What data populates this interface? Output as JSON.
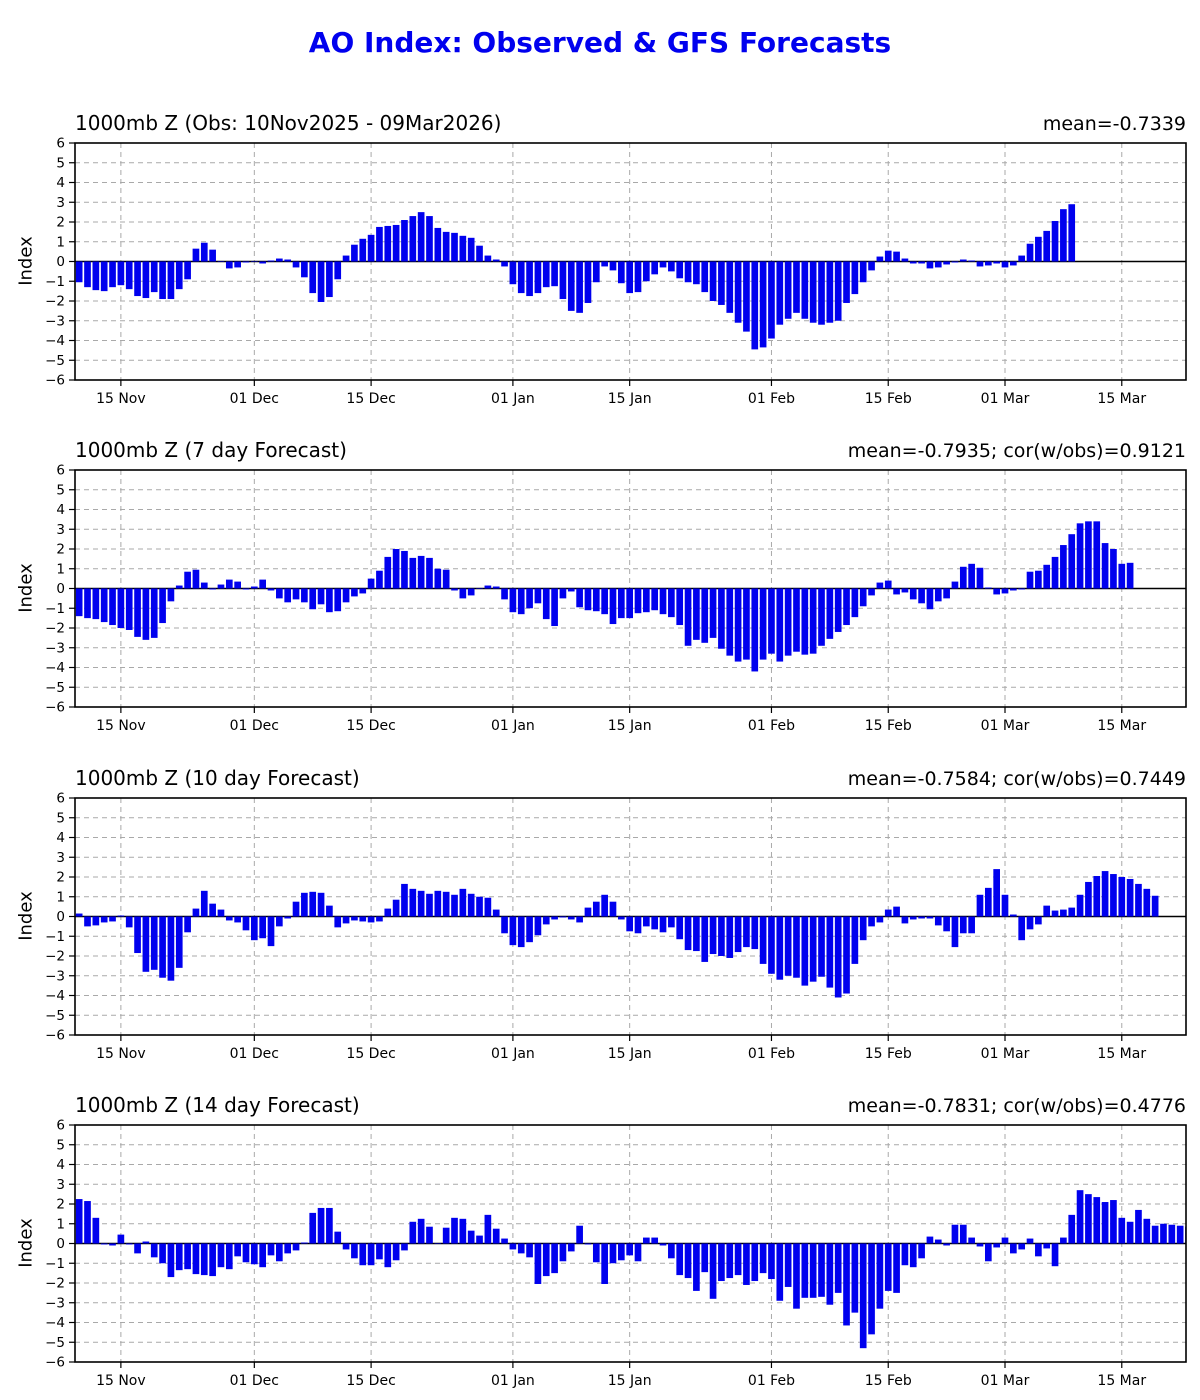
{
  "figure": {
    "title": "AO Index: Observed & GFS Forecasts",
    "title_color": "#0000ee",
    "bar_color": "#0000ee",
    "background": "#ffffff"
  },
  "x_axis": {
    "tick_labels": [
      "15 Nov",
      "01 Dec",
      "15 Dec",
      "01 Jan",
      "15 Jan",
      "01 Feb",
      "15 Feb",
      "01 Mar",
      "15 Mar"
    ],
    "tick_day_indices": [
      5,
      21,
      35,
      52,
      66,
      83,
      97,
      111,
      125
    ],
    "start_date_label": "10Nov2025",
    "days_shown": 133.2
  },
  "y_axis": {
    "label": "Index",
    "ticks": [
      6,
      5,
      4,
      3,
      2,
      1,
      0,
      -1,
      -2,
      -3,
      -4,
      -5,
      -6
    ],
    "min": -6,
    "max": 6,
    "grid": true
  },
  "chart_data": [
    {
      "id": "observed",
      "type": "bar",
      "title": "1000mb Z (Obs: 10Nov2025 - 09Mar2026)",
      "annotation": "mean=-0.7339",
      "ylabel": "Index",
      "ylim": [
        -6,
        6
      ],
      "x_start": "10Nov2025",
      "x_step_days": 1,
      "values": [
        -1.05,
        -1.3,
        -1.45,
        -1.5,
        -1.3,
        -1.2,
        -1.4,
        -1.75,
        -1.85,
        -1.55,
        -1.9,
        -1.9,
        -1.4,
        -0.9,
        0.65,
        0.95,
        0.6,
        0.0,
        -0.35,
        -0.3,
        -0.05,
        0.0,
        -0.1,
        0.05,
        0.15,
        0.1,
        -0.3,
        -0.8,
        -1.6,
        -2.05,
        -1.8,
        -0.9,
        0.3,
        0.85,
        1.15,
        1.35,
        1.75,
        1.8,
        1.85,
        2.1,
        2.3,
        2.5,
        2.3,
        1.7,
        1.5,
        1.45,
        1.3,
        1.2,
        0.8,
        0.3,
        0.1,
        -0.25,
        -1.15,
        -1.6,
        -1.75,
        -1.6,
        -1.3,
        -1.25,
        -1.9,
        -2.5,
        -2.6,
        -2.1,
        -1.05,
        -0.25,
        -0.45,
        -1.1,
        -1.6,
        -1.55,
        -1.0,
        -0.65,
        -0.3,
        -0.5,
        -0.85,
        -1.05,
        -1.15,
        -1.55,
        -2.0,
        -2.2,
        -2.6,
        -3.1,
        -3.55,
        -4.45,
        -4.35,
        -3.9,
        -3.2,
        -2.9,
        -2.6,
        -2.9,
        -3.1,
        -3.2,
        -3.1,
        -3.0,
        -2.1,
        -1.65,
        -1.05,
        -0.45,
        0.25,
        0.55,
        0.5,
        0.15,
        -0.1,
        -0.1,
        -0.35,
        -0.3,
        -0.15,
        -0.05,
        0.1,
        0.05,
        -0.25,
        -0.2,
        -0.1,
        -0.3,
        -0.2,
        0.3,
        0.9,
        1.25,
        1.55,
        2.05,
        2.65,
        2.9
      ]
    },
    {
      "id": "forecast-7day",
      "type": "bar",
      "title": "1000mb Z (7 day Forecast)",
      "annotation": "mean=-0.7935; cor(w/obs)=0.9121",
      "ylabel": "Index",
      "ylim": [
        -6,
        6
      ],
      "x_start": "10Nov2025",
      "x_step_days": 1,
      "values": [
        -1.4,
        -1.5,
        -1.55,
        -1.7,
        -1.85,
        -2.0,
        -2.1,
        -2.45,
        -2.6,
        -2.5,
        -1.75,
        -0.65,
        0.15,
        0.85,
        0.95,
        0.3,
        -0.05,
        0.2,
        0.45,
        0.35,
        -0.05,
        0.1,
        0.45,
        -0.1,
        -0.5,
        -0.7,
        -0.55,
        -0.7,
        -1.05,
        -0.8,
        -1.2,
        -1.15,
        -0.7,
        -0.4,
        -0.25,
        0.5,
        0.9,
        1.6,
        2.0,
        1.9,
        1.55,
        1.65,
        1.55,
        1.0,
        0.95,
        -0.1,
        -0.5,
        -0.35,
        0.0,
        0.15,
        0.1,
        -0.55,
        -1.2,
        -1.3,
        -1.0,
        -0.75,
        -1.55,
        -1.9,
        -0.5,
        -0.15,
        -0.95,
        -1.1,
        -1.15,
        -1.3,
        -1.8,
        -1.5,
        -1.5,
        -1.25,
        -1.2,
        -1.1,
        -1.3,
        -1.45,
        -1.85,
        -2.9,
        -2.6,
        -2.75,
        -2.5,
        -3.05,
        -3.4,
        -3.7,
        -3.6,
        -4.2,
        -3.6,
        -3.3,
        -3.7,
        -3.4,
        -3.2,
        -3.35,
        -3.3,
        -2.9,
        -2.55,
        -2.2,
        -1.85,
        -1.45,
        -0.9,
        -0.35,
        0.3,
        0.4,
        -0.3,
        -0.2,
        -0.55,
        -0.75,
        -1.05,
        -0.65,
        -0.5,
        0.35,
        1.1,
        1.25,
        1.05,
        0.05,
        -0.3,
        -0.25,
        -0.1,
        -0.05,
        0.85,
        0.9,
        1.2,
        1.6,
        2.2,
        2.75,
        3.3,
        3.4,
        3.4,
        2.3,
        2.0,
        1.25,
        1.3
      ]
    },
    {
      "id": "forecast-10day",
      "type": "bar",
      "title": "1000mb Z (10 day Forecast)",
      "annotation": "mean=-0.7584; cor(w/obs)=0.7449",
      "ylabel": "Index",
      "ylim": [
        -6,
        6
      ],
      "x_start": "10Nov2025",
      "x_step_days": 1,
      "values": [
        0.15,
        -0.5,
        -0.45,
        -0.3,
        -0.25,
        0.05,
        -0.55,
        -1.85,
        -2.8,
        -2.7,
        -3.1,
        -3.25,
        -2.6,
        -0.8,
        0.4,
        1.3,
        0.65,
        0.35,
        -0.2,
        -0.3,
        -0.7,
        -1.2,
        -1.1,
        -1.5,
        -0.5,
        -0.1,
        0.75,
        1.2,
        1.25,
        1.2,
        0.55,
        -0.55,
        -0.35,
        -0.2,
        -0.25,
        -0.3,
        -0.25,
        0.4,
        0.85,
        1.65,
        1.4,
        1.3,
        1.15,
        1.3,
        1.25,
        1.1,
        1.4,
        1.15,
        1.0,
        0.95,
        0.35,
        -0.85,
        -1.45,
        -1.55,
        -1.3,
        -0.95,
        -0.4,
        -0.15,
        -0.05,
        -0.15,
        -0.3,
        0.45,
        0.75,
        1.1,
        0.75,
        -0.15,
        -0.75,
        -0.85,
        -0.5,
        -0.65,
        -0.8,
        -0.55,
        -1.15,
        -1.7,
        -1.75,
        -2.3,
        -1.9,
        -2.0,
        -2.1,
        -1.8,
        -1.55,
        -1.65,
        -2.4,
        -2.9,
        -3.2,
        -3.0,
        -3.1,
        -3.5,
        -3.3,
        -3.05,
        -3.6,
        -4.1,
        -3.9,
        -2.4,
        -1.2,
        -0.5,
        -0.3,
        0.35,
        0.5,
        -0.35,
        -0.15,
        -0.1,
        -0.1,
        -0.45,
        -0.75,
        -1.55,
        -0.85,
        -0.85,
        1.1,
        1.45,
        2.4,
        1.1,
        0.1,
        -1.2,
        -0.65,
        -0.4,
        0.55,
        0.3,
        0.35,
        0.45,
        1.1,
        1.75,
        2.05,
        2.3,
        2.15,
        2.0,
        1.9,
        1.65,
        1.4,
        1.05
      ]
    },
    {
      "id": "forecast-14day",
      "type": "bar",
      "title": "1000mb Z (14 day Forecast)",
      "annotation": "mean=-0.7831; cor(w/obs)=0.4776",
      "ylabel": "Index",
      "ylim": [
        -6,
        6
      ],
      "x_start": "10Nov2025",
      "x_step_days": 1,
      "values": [
        2.25,
        2.15,
        1.3,
        -0.05,
        -0.1,
        0.45,
        -0.05,
        -0.5,
        0.1,
        -0.7,
        -1.0,
        -1.7,
        -1.35,
        -1.3,
        -1.55,
        -1.6,
        -1.65,
        -1.2,
        -1.3,
        -0.65,
        -0.95,
        -1.05,
        -1.2,
        -0.6,
        -0.9,
        -0.5,
        -0.35,
        0.05,
        1.55,
        1.8,
        1.8,
        0.6,
        -0.3,
        -0.75,
        -1.1,
        -1.1,
        -0.8,
        -1.2,
        -0.85,
        -0.35,
        1.1,
        1.25,
        0.85,
        0.0,
        0.8,
        1.3,
        1.25,
        0.65,
        0.4,
        1.45,
        0.75,
        0.25,
        -0.3,
        -0.5,
        -0.7,
        -2.05,
        -1.65,
        -1.5,
        -0.9,
        -0.4,
        0.9,
        -0.05,
        -0.95,
        -2.05,
        -1.0,
        -0.85,
        -0.6,
        -0.9,
        0.3,
        0.3,
        -0.1,
        -0.75,
        -1.6,
        -1.75,
        -2.4,
        -1.45,
        -2.8,
        -1.9,
        -1.75,
        -1.6,
        -2.1,
        -1.9,
        -1.5,
        -1.8,
        -2.9,
        -2.2,
        -3.3,
        -2.75,
        -2.75,
        -2.7,
        -3.1,
        -2.5,
        -4.15,
        -3.5,
        -5.3,
        -4.6,
        -3.3,
        -2.4,
        -2.5,
        -1.1,
        -1.2,
        -0.75,
        0.35,
        0.2,
        -0.1,
        0.95,
        0.95,
        0.3,
        -0.15,
        -0.9,
        -0.2,
        0.3,
        -0.5,
        -0.3,
        0.25,
        -0.65,
        -0.25,
        -1.15,
        0.3,
        1.45,
        2.7,
        2.5,
        2.35,
        2.1,
        2.2,
        1.3,
        1.1,
        1.7,
        1.25,
        0.9,
        1.0,
        0.95,
        0.9,
        0.85
      ]
    }
  ]
}
